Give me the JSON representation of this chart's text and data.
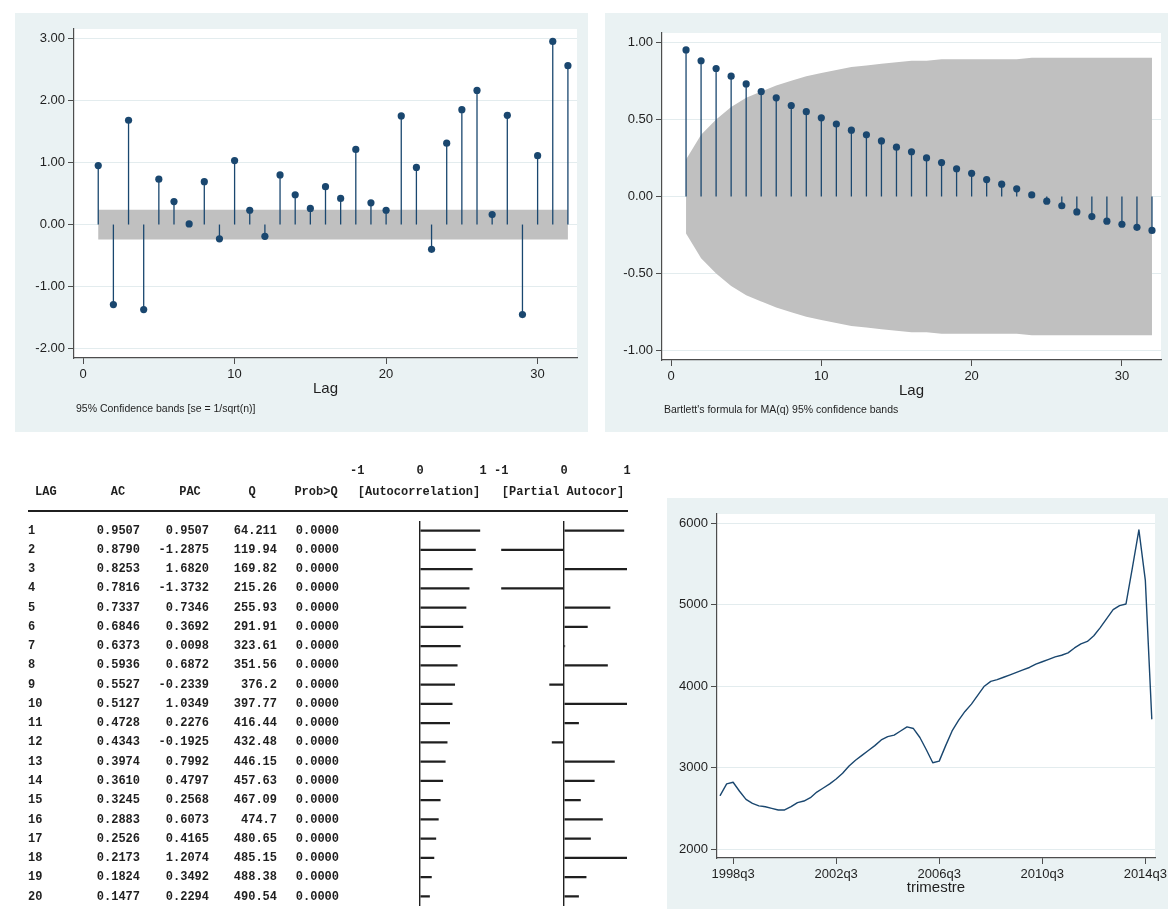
{
  "chart_data": [
    {
      "type": "lollipop",
      "xlabel": "Lag",
      "annotations": [
        "95% Confidence bands [se = 1/sqrt(n)]"
      ],
      "x": [
        1,
        2,
        3,
        4,
        5,
        6,
        7,
        8,
        9,
        10,
        11,
        12,
        13,
        14,
        15,
        16,
        17,
        18,
        19,
        20,
        21,
        22,
        23,
        24,
        25,
        26,
        27,
        28,
        29,
        30,
        31,
        32
      ],
      "series": [
        {
          "color": "#1a476f",
          "values": [
            0.95,
            -1.29,
            1.68,
            -1.37,
            0.73,
            0.37,
            0.01,
            0.69,
            -0.23,
            1.03,
            0.23,
            -0.19,
            0.8,
            0.48,
            0.26,
            0.61,
            0.42,
            1.21,
            0.35,
            0.23,
            1.75,
            0.92,
            -0.4,
            1.31,
            1.85,
            2.16,
            0.16,
            1.76,
            -1.45,
            1.11,
            2.95,
            2.56
          ],
          "lower": [
            -0.24,
            -0.24,
            -0.24,
            -0.24,
            -0.24,
            -0.24,
            -0.24,
            -0.24,
            -0.24,
            -0.24,
            -0.24,
            -0.24,
            -0.24,
            -0.24,
            -0.24,
            -0.24,
            -0.24,
            -0.24,
            -0.24,
            -0.24,
            -0.24,
            -0.24,
            -0.24,
            -0.24,
            -0.24,
            -0.24,
            -0.24,
            -0.24,
            -0.24,
            -0.24,
            -0.24,
            -0.24
          ],
          "upper": [
            0.24,
            0.24,
            0.24,
            0.24,
            0.24,
            0.24,
            0.24,
            0.24,
            0.24,
            0.24,
            0.24,
            0.24,
            0.24,
            0.24,
            0.24,
            0.24,
            0.24,
            0.24,
            0.24,
            0.24,
            0.24,
            0.24,
            0.24,
            0.24,
            0.24,
            0.24,
            0.24,
            0.24,
            0.24,
            0.24,
            0.24,
            0.24
          ]
        }
      ],
      "xlim": [
        -0.6,
        32.6
      ],
      "xticks": [
        0,
        10,
        20,
        30
      ],
      "ylim": [
        -2.15,
        3.15
      ],
      "yticks": [
        {
          "value": -2,
          "label": "-2.00"
        },
        {
          "value": -1,
          "label": "-1.00"
        },
        {
          "value": 0,
          "label": "0.00"
        },
        {
          "value": 1,
          "label": "1.00"
        },
        {
          "value": 2,
          "label": "2.00"
        },
        {
          "value": 3,
          "label": "3.00"
        }
      ],
      "grid": "y",
      "marker": "circle"
    },
    {
      "type": "lollipop",
      "xlabel": "Lag",
      "annotations": [
        "Bartlett's formula for MA(q) 95% confidence bands"
      ],
      "x": [
        1,
        2,
        3,
        4,
        5,
        6,
        7,
        8,
        9,
        10,
        11,
        12,
        13,
        14,
        15,
        16,
        17,
        18,
        19,
        20,
        21,
        22,
        23,
        24,
        25,
        26,
        27,
        28,
        29,
        30,
        31,
        32
      ],
      "series": [
        {
          "color": "#1a476f",
          "values": [
            0.95,
            0.88,
            0.83,
            0.78,
            0.73,
            0.68,
            0.64,
            0.59,
            0.55,
            0.51,
            0.47,
            0.43,
            0.4,
            0.36,
            0.32,
            0.29,
            0.25,
            0.22,
            0.18,
            0.15,
            0.11,
            0.08,
            0.05,
            0.01,
            -0.03,
            -0.06,
            -0.1,
            -0.13,
            -0.16,
            -0.18,
            -0.2,
            -0.22
          ],
          "lower": [
            -0.24,
            -0.4,
            -0.5,
            -0.58,
            -0.64,
            -0.68,
            -0.72,
            -0.75,
            -0.78,
            -0.8,
            -0.82,
            -0.84,
            -0.85,
            -0.86,
            -0.87,
            -0.88,
            -0.88,
            -0.89,
            -0.89,
            -0.89,
            -0.89,
            -0.89,
            -0.89,
            -0.9,
            -0.9,
            -0.9,
            -0.9,
            -0.9,
            -0.9,
            -0.9,
            -0.9,
            -0.9
          ],
          "upper": [
            0.24,
            0.4,
            0.5,
            0.58,
            0.64,
            0.68,
            0.72,
            0.75,
            0.78,
            0.8,
            0.82,
            0.84,
            0.85,
            0.86,
            0.87,
            0.88,
            0.88,
            0.89,
            0.89,
            0.89,
            0.89,
            0.89,
            0.89,
            0.9,
            0.9,
            0.9,
            0.9,
            0.9,
            0.9,
            0.9,
            0.9,
            0.9
          ]
        }
      ],
      "xlim": [
        -0.6,
        32.6
      ],
      "xticks": [
        0,
        10,
        20,
        30
      ],
      "ylim": [
        -1.06,
        1.06
      ],
      "yticks": [
        {
          "value": -1,
          "label": "-1.00"
        },
        {
          "value": -0.5,
          "label": "-0.50"
        },
        {
          "value": 0,
          "label": "0.00"
        },
        {
          "value": 0.5,
          "label": "0.50"
        },
        {
          "value": 1,
          "label": "1.00"
        }
      ],
      "grid": "y",
      "marker": "circle"
    },
    {
      "type": "heatmap",
      "ylabel": "LAG",
      "categories": [
        "AC",
        "PAC",
        "Q",
        "Prob>Q"
      ],
      "y_categories": [
        "1",
        "2",
        "3",
        "4",
        "5",
        "6",
        "7",
        "8",
        "9",
        "10",
        "11",
        "12",
        "13",
        "14",
        "15",
        "16",
        "17",
        "18",
        "19",
        "20"
      ],
      "cells": [
        [
          0.9507,
          0.9507,
          64.211,
          0
        ],
        [
          0.879,
          -1.2875,
          119.94,
          0
        ],
        [
          0.8253,
          1.682,
          169.82,
          0
        ],
        [
          0.7816,
          -1.3732,
          215.26,
          0
        ],
        [
          0.7337,
          0.7346,
          255.93,
          0
        ],
        [
          0.6846,
          0.3692,
          291.91,
          0
        ],
        [
          0.6373,
          0.0098,
          323.61,
          0
        ],
        [
          0.5936,
          0.6872,
          351.56,
          0
        ],
        [
          0.5527,
          -0.2339,
          376.2,
          0
        ],
        [
          0.5127,
          1.0349,
          397.77,
          0
        ],
        [
          0.4728,
          0.2276,
          416.44,
          0
        ],
        [
          0.4343,
          -0.1925,
          432.48,
          0
        ],
        [
          0.3974,
          0.7992,
          446.15,
          0
        ],
        [
          0.361,
          0.4797,
          457.63,
          0
        ],
        [
          0.3245,
          0.2568,
          467.09,
          0
        ],
        [
          0.2883,
          0.6073,
          474.7,
          0
        ],
        [
          0.2526,
          0.4165,
          480.65,
          0
        ],
        [
          0.2173,
          1.2074,
          485.15,
          0
        ],
        [
          0.1824,
          0.3492,
          488.38,
          0
        ],
        [
          0.1477,
          0.2294,
          490.54,
          0
        ]
      ],
      "cell_labels": [
        [
          "0.9507",
          "0.9507",
          "64.211",
          "0.0000"
        ],
        [
          "0.8790",
          "-1.2875",
          "119.94",
          "0.0000"
        ],
        [
          "0.8253",
          "1.6820",
          "169.82",
          "0.0000"
        ],
        [
          "0.7816",
          "-1.3732",
          "215.26",
          "0.0000"
        ],
        [
          "0.7337",
          "0.7346",
          "255.93",
          "0.0000"
        ],
        [
          "0.6846",
          "0.3692",
          "291.91",
          "0.0000"
        ],
        [
          "0.6373",
          "0.0098",
          "323.61",
          "0.0000"
        ],
        [
          "0.5936",
          "0.6872",
          "351.56",
          "0.0000"
        ],
        [
          "0.5527",
          "-0.2339",
          "376.2",
          "0.0000"
        ],
        [
          "0.5127",
          "1.0349",
          "397.77",
          "0.0000"
        ],
        [
          "0.4728",
          "0.2276",
          "416.44",
          "0.0000"
        ],
        [
          "0.4343",
          "-0.1925",
          "432.48",
          "0.0000"
        ],
        [
          "0.3974",
          "0.7992",
          "446.15",
          "0.0000"
        ],
        [
          "0.3610",
          "0.4797",
          "457.63",
          "0.0000"
        ],
        [
          "0.3245",
          "0.2568",
          "467.09",
          "0.0000"
        ],
        [
          "0.2883",
          "0.6073",
          "474.7",
          "0.0000"
        ],
        [
          "0.2526",
          "0.4165",
          "480.65",
          "0.0000"
        ],
        [
          "0.2173",
          "1.2074",
          "485.15",
          "0.0000"
        ],
        [
          "0.1824",
          "0.3492",
          "488.38",
          "0.0000"
        ],
        [
          "0.1477",
          "0.2294",
          "490.54",
          "0.0000"
        ]
      ]
    },
    {
      "type": "bar",
      "orientation": "horizontal",
      "xlabel": "[Autocorrelation]",
      "categories": [
        null,
        null,
        null,
        null,
        null,
        null,
        null,
        null,
        null,
        null,
        null,
        null,
        null,
        null,
        null,
        null,
        null,
        null,
        null,
        null
      ],
      "values": [
        0.95,
        0.88,
        0.83,
        0.78,
        0.73,
        0.68,
        0.64,
        0.59,
        0.55,
        0.51,
        0.47,
        0.43,
        0.4,
        0.36,
        0.32,
        0.29,
        0.25,
        0.22,
        0.18,
        0.15
      ],
      "color": "#1f1f1f",
      "xlim": [
        -1,
        1
      ],
      "xticks": [
        -1,
        0,
        1
      ]
    },
    {
      "type": "bar",
      "orientation": "horizontal",
      "xlabel": "[Partial Autocor]",
      "categories": [
        null,
        null,
        null,
        null,
        null,
        null,
        null,
        null,
        null,
        null,
        null,
        null,
        null,
        null,
        null,
        null,
        null,
        null,
        null,
        null
      ],
      "values": [
        0.95,
        -1,
        1,
        -1,
        0.73,
        0.37,
        0.01,
        0.69,
        -0.23,
        1,
        0.23,
        -0.19,
        0.8,
        0.48,
        0.26,
        0.61,
        0.42,
        1,
        0.35,
        0.23
      ],
      "color": "#1f1f1f",
      "xlim": [
        -1,
        1
      ],
      "xticks": [
        -1,
        0,
        1
      ]
    },
    {
      "type": "line",
      "xlabel": "trimestre",
      "categories": [
        null,
        null,
        "1998q3",
        null,
        null,
        null,
        null,
        null,
        null,
        null,
        null,
        null,
        null,
        null,
        null,
        null,
        null,
        null,
        "2002q3",
        null,
        null,
        null,
        null,
        null,
        null,
        null,
        null,
        null,
        null,
        null,
        null,
        null,
        null,
        null,
        "2006q3",
        null,
        null,
        null,
        null,
        null,
        null,
        null,
        null,
        null,
        null,
        null,
        null,
        null,
        null,
        null,
        "2010q3",
        null,
        null,
        null,
        null,
        null,
        null,
        null,
        null,
        null,
        null,
        null,
        null,
        null,
        null,
        null,
        "2014q3",
        null
      ],
      "values": [
        2660,
        2800,
        2820,
        2710,
        2610,
        2560,
        2530,
        2520,
        2500,
        2480,
        2480,
        2520,
        2570,
        2590,
        2630,
        2700,
        2750,
        2800,
        2860,
        2930,
        3020,
        3090,
        3150,
        3210,
        3270,
        3340,
        3380,
        3400,
        3450,
        3500,
        3480,
        3370,
        3220,
        3060,
        3080,
        3270,
        3450,
        3580,
        3690,
        3780,
        3890,
        4000,
        4060,
        4080,
        4110,
        4140,
        4170,
        4200,
        4230,
        4270,
        4300,
        4330,
        4360,
        4380,
        4410,
        4470,
        4520,
        4550,
        4620,
        4720,
        4830,
        4940,
        4990,
        5010,
        5460,
        5920,
        5300,
        3600
      ],
      "color": "#1a476f",
      "ylim": [
        1890,
        6115
      ],
      "yticks": [
        2000,
        3000,
        4000,
        5000,
        6000
      ],
      "grid": "y"
    }
  ]
}
